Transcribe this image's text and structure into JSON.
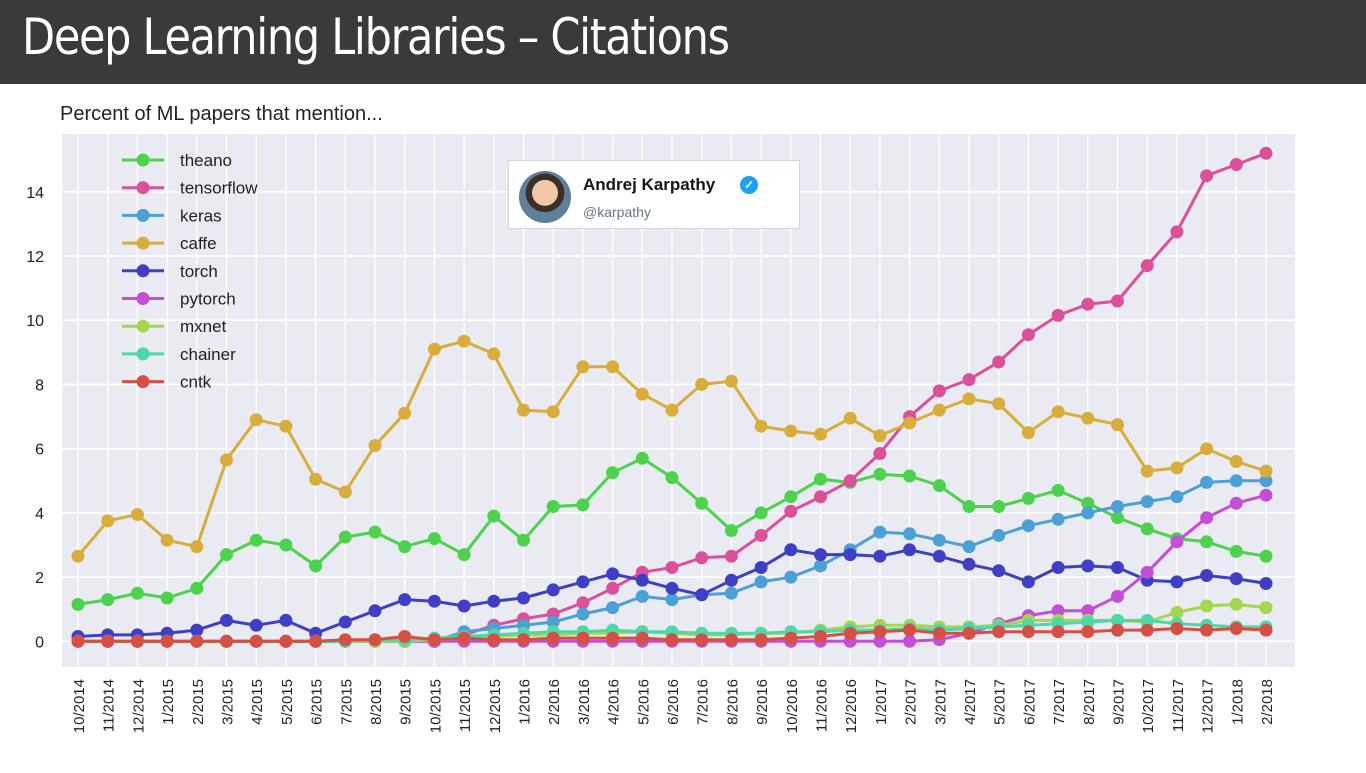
{
  "page": {
    "title": "Deep Learning Libraries – Citations"
  },
  "tweet": {
    "author_name": "Andrej Karpathy",
    "handle": "@karpathy",
    "verified_icon": "verified-badge-icon"
  },
  "chart_data": {
    "type": "line",
    "title": "Percent of ML papers that mention...",
    "xlabel": "",
    "ylabel": "",
    "ylim": [
      -0.8,
      15.8
    ],
    "yticks": [
      0,
      2,
      4,
      6,
      8,
      10,
      12,
      14
    ],
    "grid": true,
    "legend_position": "top-left",
    "x": [
      "10/2014",
      "11/2014",
      "12/2014",
      "1/2015",
      "2/2015",
      "3/2015",
      "4/2015",
      "5/2015",
      "6/2015",
      "7/2015",
      "8/2015",
      "9/2015",
      "10/2015",
      "11/2015",
      "12/2015",
      "1/2016",
      "2/2016",
      "3/2016",
      "4/2016",
      "5/2016",
      "6/2016",
      "7/2016",
      "8/2016",
      "9/2016",
      "10/2016",
      "11/2016",
      "12/2016",
      "1/2017",
      "2/2017",
      "3/2017",
      "4/2017",
      "5/2017",
      "6/2017",
      "7/2017",
      "8/2017",
      "9/2017",
      "10/2017",
      "11/2017",
      "12/2017",
      "1/2018",
      "2/2018"
    ],
    "series": [
      {
        "name": "theano",
        "color": "#4cd24c",
        "values": [
          1.15,
          1.3,
          1.5,
          1.35,
          1.65,
          2.7,
          3.15,
          3.0,
          2.35,
          3.25,
          3.4,
          2.95,
          3.2,
          2.7,
          3.9,
          3.15,
          4.2,
          4.25,
          5.25,
          5.7,
          5.1,
          4.3,
          3.45,
          4.0,
          4.5,
          5.05,
          4.95,
          5.2,
          5.15,
          4.85,
          4.2,
          4.2,
          4.45,
          4.7,
          4.3,
          3.85,
          3.5,
          3.2,
          3.1,
          2.8,
          2.65
        ]
      },
      {
        "name": "tensorflow",
        "color": "#dc4f9a",
        "values": [
          0.0,
          0.0,
          0.0,
          0.0,
          0.0,
          0.0,
          0.0,
          0.0,
          0.0,
          0.0,
          0.0,
          0.0,
          0.0,
          0.2,
          0.5,
          0.7,
          0.85,
          1.2,
          1.65,
          2.15,
          2.3,
          2.6,
          2.65,
          3.3,
          4.05,
          4.5,
          5.0,
          5.85,
          7.0,
          7.8,
          8.15,
          8.7,
          9.55,
          10.15,
          10.5,
          10.6,
          11.7,
          12.75,
          14.5,
          14.85,
          15.2
        ]
      },
      {
        "name": "keras",
        "color": "#4ba0d5",
        "values": [
          0.0,
          0.0,
          0.0,
          0.0,
          0.0,
          0.0,
          0.0,
          0.0,
          0.0,
          0.0,
          0.0,
          0.0,
          0.0,
          0.3,
          0.4,
          0.5,
          0.6,
          0.85,
          1.05,
          1.4,
          1.3,
          1.45,
          1.5,
          1.85,
          2.0,
          2.35,
          2.85,
          3.4,
          3.35,
          3.15,
          2.95,
          3.3,
          3.6,
          3.8,
          4.0,
          4.2,
          4.35,
          4.5,
          4.95,
          5.0,
          5.0
        ]
      },
      {
        "name": "caffe",
        "color": "#d9ad3c",
        "values": [
          2.65,
          3.75,
          3.95,
          3.15,
          2.95,
          5.65,
          6.9,
          6.7,
          5.05,
          4.65,
          6.1,
          7.1,
          9.1,
          9.35,
          8.95,
          7.2,
          7.15,
          8.55,
          8.55,
          7.7,
          7.2,
          8.0,
          8.1,
          6.7,
          6.55,
          6.45,
          6.95,
          6.4,
          6.8,
          7.2,
          7.55,
          7.4,
          6.5,
          7.15,
          6.95,
          6.75,
          5.3,
          5.4,
          6.0,
          5.6,
          5.3
        ]
      },
      {
        "name": "torch",
        "color": "#3f3fc6",
        "values": [
          0.15,
          0.2,
          0.2,
          0.25,
          0.35,
          0.65,
          0.5,
          0.65,
          0.25,
          0.6,
          0.95,
          1.3,
          1.25,
          1.1,
          1.25,
          1.35,
          1.6,
          1.85,
          2.1,
          1.9,
          1.65,
          1.45,
          1.9,
          2.3,
          2.85,
          2.7,
          2.7,
          2.65,
          2.85,
          2.65,
          2.4,
          2.2,
          1.85,
          2.3,
          2.35,
          2.3,
          1.9,
          1.85,
          2.05,
          1.95,
          1.8
        ]
      },
      {
        "name": "pytorch",
        "color": "#c44ed6",
        "values": [
          0,
          0,
          0,
          0,
          0,
          0,
          0,
          0,
          0,
          0,
          0,
          0,
          0,
          0,
          0,
          0,
          0,
          0,
          0,
          0,
          0,
          0,
          0,
          0,
          0,
          0,
          0,
          0,
          0,
          0.05,
          0.25,
          0.55,
          0.8,
          0.95,
          0.95,
          1.4,
          2.15,
          3.1,
          3.85,
          4.3,
          4.55
        ]
      },
      {
        "name": "mxnet",
        "color": "#a3d74f",
        "values": [
          0.0,
          0.0,
          0.0,
          0.0,
          0.0,
          0.0,
          0.0,
          0.0,
          0.0,
          0.0,
          0.0,
          0.0,
          0.05,
          0.1,
          0.15,
          0.2,
          0.2,
          0.25,
          0.25,
          0.3,
          0.25,
          0.2,
          0.2,
          0.25,
          0.25,
          0.35,
          0.45,
          0.5,
          0.5,
          0.45,
          0.45,
          0.5,
          0.65,
          0.65,
          0.65,
          0.65,
          0.6,
          0.9,
          1.1,
          1.15,
          1.05
        ]
      },
      {
        "name": "chainer",
        "color": "#4dd8a8",
        "values": [
          0.0,
          0.0,
          0.0,
          0.0,
          0.0,
          0.0,
          0.0,
          0.0,
          0.0,
          0.0,
          0.05,
          0.05,
          0.1,
          0.15,
          0.2,
          0.25,
          0.3,
          0.3,
          0.35,
          0.3,
          0.3,
          0.25,
          0.25,
          0.25,
          0.3,
          0.3,
          0.35,
          0.35,
          0.4,
          0.35,
          0.4,
          0.45,
          0.5,
          0.55,
          0.6,
          0.65,
          0.65,
          0.55,
          0.5,
          0.45,
          0.45
        ]
      },
      {
        "name": "cntk",
        "color": "#d64f45",
        "values": [
          0.0,
          0.0,
          0.0,
          0.0,
          0.0,
          0.0,
          0.0,
          0.0,
          0.0,
          0.05,
          0.05,
          0.15,
          0.05,
          0.1,
          0.05,
          0.05,
          0.1,
          0.1,
          0.1,
          0.1,
          0.05,
          0.05,
          0.05,
          0.05,
          0.1,
          0.15,
          0.25,
          0.3,
          0.35,
          0.25,
          0.25,
          0.3,
          0.3,
          0.3,
          0.3,
          0.35,
          0.35,
          0.4,
          0.35,
          0.4,
          0.35
        ]
      }
    ]
  }
}
